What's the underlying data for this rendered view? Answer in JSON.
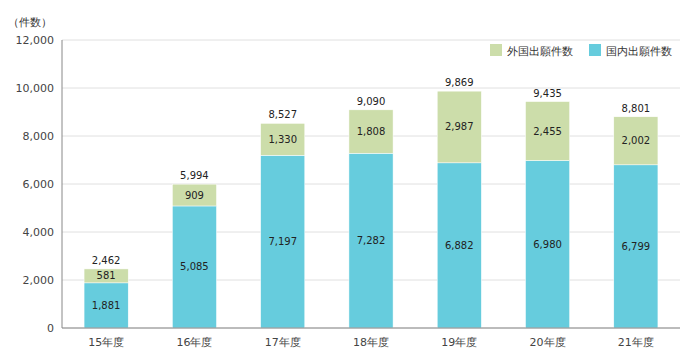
{
  "chart_data": {
    "type": "bar",
    "stacked": true,
    "categories": [
      "15年度",
      "16年度",
      "17年度",
      "18年度",
      "19年度",
      "20年度",
      "21年度"
    ],
    "series": [
      {
        "name": "国内出願件数",
        "color": "#66ccdd",
        "values": [
          1881,
          5085,
          7197,
          7282,
          6882,
          6980,
          6799
        ],
        "value_labels": [
          "1,881",
          "5,085",
          "7,197",
          "7,282",
          "6,882",
          "6,980",
          "6,799"
        ]
      },
      {
        "name": "外国出願件数",
        "color": "#ccddaa",
        "values": [
          581,
          909,
          1330,
          1808,
          2987,
          2455,
          2002
        ],
        "value_labels": [
          "581",
          "909",
          "1,330",
          "1,808",
          "2,987",
          "2,455",
          "2,002"
        ]
      }
    ],
    "totals": {
      "values": [
        2462,
        5994,
        8527,
        9090,
        9869,
        9435,
        8801
      ],
      "value_labels": [
        "2,462",
        "5,994",
        "8,527",
        "9,090",
        "9,869",
        "9,435",
        "8,801"
      ]
    },
    "ylabel": "（件数）",
    "ylim": [
      0,
      12000
    ],
    "yticks": [
      0,
      {
        "value": 2000,
        "label": "2,000"
      },
      {
        "value": 4000,
        "label": "4,000"
      },
      {
        "value": 6000,
        "label": "6,000"
      },
      {
        "value": 8000,
        "label": "8,000"
      },
      {
        "value": 10000,
        "label": "10,000"
      },
      {
        "value": 12000,
        "label": "12,000"
      }
    ],
    "grid": true,
    "legend": "upper right",
    "data_labels": true
  }
}
